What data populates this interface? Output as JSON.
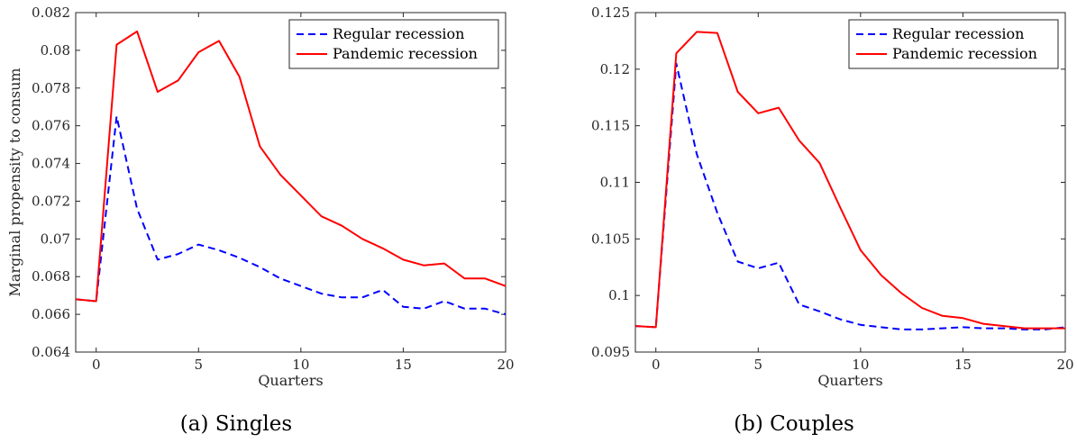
{
  "chart_data": [
    {
      "type": "line",
      "caption": "(a) Singles",
      "xlabel": "Quarters",
      "ylabel": "Marginal propensity to consum",
      "xlim": [
        -1,
        20
      ],
      "ylim": [
        0.064,
        0.082
      ],
      "xticks": [
        0,
        5,
        10,
        15,
        20
      ],
      "yticks": [
        0.064,
        0.066,
        0.068,
        0.07,
        0.072,
        0.074,
        0.076,
        0.078,
        0.08,
        0.082
      ],
      "ytick_labels": [
        "0.064",
        "0.066",
        "0.068",
        "0.07",
        "0.072",
        "0.074",
        "0.076",
        "0.078",
        "0.08",
        "0.082"
      ],
      "legend_position": "top-right",
      "grid": false,
      "series": [
        {
          "name": "Regular recession",
          "style": "dashed",
          "color": "#0000ff",
          "x": [
            -1,
            0,
            1,
            2,
            3,
            4,
            5,
            6,
            7,
            8,
            9,
            10,
            11,
            12,
            13,
            14,
            15,
            16,
            17,
            18,
            19,
            20
          ],
          "y": [
            0.0668,
            0.0667,
            0.0765,
            0.0716,
            0.0689,
            0.0692,
            0.0697,
            0.0694,
            0.069,
            0.0685,
            0.0679,
            0.0675,
            0.0671,
            0.0669,
            0.0669,
            0.0673,
            0.0664,
            0.0663,
            0.0667,
            0.0663,
            0.0663,
            0.066
          ]
        },
        {
          "name": "Pandemic recession",
          "style": "solid",
          "color": "#ff0000",
          "x": [
            -1,
            0,
            1,
            2,
            3,
            4,
            5,
            6,
            7,
            8,
            9,
            10,
            11,
            12,
            13,
            14,
            15,
            16,
            17,
            18,
            19,
            20
          ],
          "y": [
            0.0668,
            0.0667,
            0.0803,
            0.081,
            0.0778,
            0.0784,
            0.0799,
            0.0805,
            0.0786,
            0.0749,
            0.0734,
            0.0723,
            0.0712,
            0.0707,
            0.07,
            0.0695,
            0.0689,
            0.0686,
            0.0687,
            0.0679,
            0.0679,
            0.0675
          ]
        }
      ]
    },
    {
      "type": "line",
      "caption": "(b) Couples",
      "xlabel": "Quarters",
      "ylabel": "",
      "xlim": [
        -1,
        20
      ],
      "ylim": [
        0.095,
        0.125
      ],
      "xticks": [
        0,
        5,
        10,
        15,
        20
      ],
      "yticks": [
        0.095,
        0.1,
        0.105,
        0.11,
        0.115,
        0.12,
        0.125
      ],
      "ytick_labels": [
        "0.095",
        "0.1",
        "0.105",
        "0.11",
        "0.115",
        "0.12",
        "0.125"
      ],
      "legend_position": "top-right",
      "grid": false,
      "series": [
        {
          "name": "Regular recession",
          "style": "dashed",
          "color": "#0000ff",
          "x": [
            -1,
            0,
            1,
            2,
            3,
            4,
            5,
            6,
            7,
            8,
            9,
            10,
            11,
            12,
            13,
            14,
            15,
            16,
            17,
            18,
            19,
            20
          ],
          "y": [
            0.0973,
            0.0972,
            0.1205,
            0.1125,
            0.1073,
            0.103,
            0.1024,
            0.1029,
            0.0992,
            0.0986,
            0.0979,
            0.0974,
            0.0972,
            0.097,
            0.097,
            0.0971,
            0.0972,
            0.0971,
            0.0971,
            0.097,
            0.097,
            0.0972
          ]
        },
        {
          "name": "Pandemic recession",
          "style": "solid",
          "color": "#ff0000",
          "x": [
            -1,
            0,
            1,
            2,
            3,
            4,
            5,
            6,
            7,
            8,
            9,
            10,
            11,
            12,
            13,
            14,
            15,
            16,
            17,
            18,
            19,
            20
          ],
          "y": [
            0.0973,
            0.0972,
            0.1214,
            0.1233,
            0.1232,
            0.118,
            0.1161,
            0.1166,
            0.1137,
            0.1117,
            0.1078,
            0.104,
            0.1018,
            0.1002,
            0.0989,
            0.0982,
            0.098,
            0.0975,
            0.0973,
            0.0971,
            0.0971,
            0.0971
          ]
        }
      ]
    }
  ]
}
